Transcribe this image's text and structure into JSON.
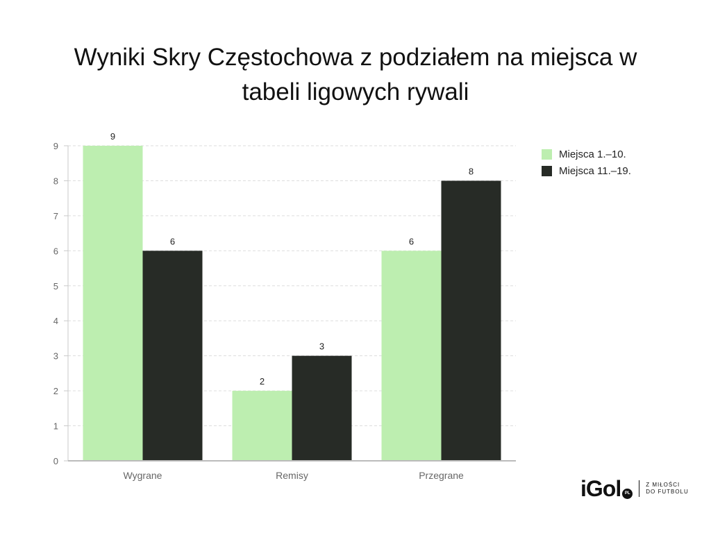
{
  "title_lines": [
    "Wyniki Skry Częstochowa z podziałem na miejsca w",
    "tabeli ligowych rywali"
  ],
  "chart_data": {
    "type": "bar",
    "categories": [
      "Wygrane",
      "Remisy",
      "Przegrane"
    ],
    "series": [
      {
        "name": "Miejsca 1.–10.",
        "values": [
          9,
          2,
          6
        ],
        "color": "#bdeeb0"
      },
      {
        "name": "Miejsca 11.–19.",
        "values": [
          6,
          3,
          8
        ],
        "color": "#272b26"
      }
    ],
    "ylim": [
      0,
      9
    ],
    "yticks": [
      "0",
      "1",
      "2",
      "3",
      "4",
      "5",
      "6",
      "7",
      "8",
      "9"
    ],
    "grid": true,
    "legend_position": "top-right",
    "data_labels": true
  },
  "logo": {
    "word": "iGol",
    "badge": "PL",
    "tagline": [
      "Z MIŁOŚCI",
      "DO FUTBOLU"
    ]
  }
}
